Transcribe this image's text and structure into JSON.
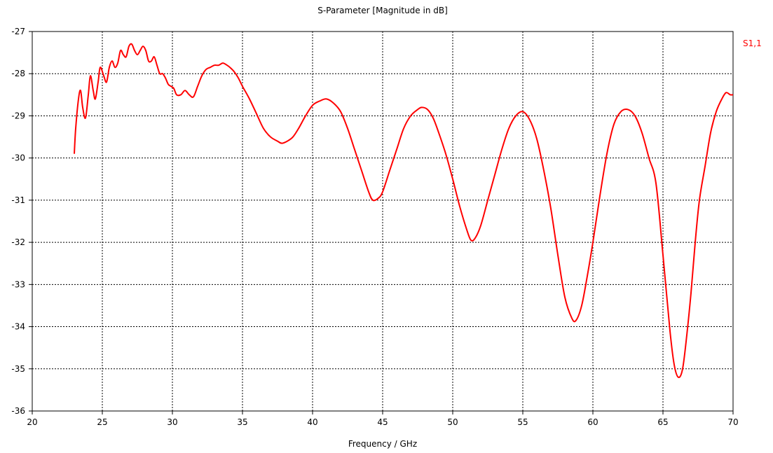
{
  "chart_data": {
    "type": "line",
    "title": "S-Parameter [Magnitude in dB]",
    "xlabel": "Frequency / GHz",
    "ylabel": "",
    "xlim": [
      20,
      70
    ],
    "ylim": [
      -36,
      -27
    ],
    "xticks": [
      20,
      25,
      30,
      35,
      40,
      45,
      50,
      55,
      60,
      65,
      70
    ],
    "yticks": [
      -27,
      -28,
      -29,
      -30,
      -31,
      -32,
      -33,
      -34,
      -35,
      -36
    ],
    "grid": true,
    "legend_position": "top-right",
    "series": [
      {
        "name": "S1,1",
        "color": "#ff0000",
        "x": [
          23.0,
          23.1,
          23.3,
          23.45,
          23.6,
          23.8,
          24.0,
          24.15,
          24.35,
          24.5,
          24.7,
          24.85,
          25.1,
          25.3,
          25.5,
          25.7,
          25.9,
          26.1,
          26.3,
          26.5,
          26.7,
          26.9,
          27.1,
          27.3,
          27.5,
          27.7,
          27.9,
          28.1,
          28.3,
          28.5,
          28.7,
          28.9,
          29.1,
          29.3,
          29.5,
          29.7,
          29.9,
          30.1,
          30.3,
          30.6,
          30.9,
          31.2,
          31.5,
          31.8,
          32.1,
          32.4,
          32.7,
          33.0,
          33.3,
          33.6,
          33.9,
          34.1,
          34.4,
          34.7,
          35.0,
          35.5,
          36.0,
          36.5,
          37.0,
          37.5,
          37.8,
          38.2,
          38.6,
          39.0,
          39.5,
          40.0,
          40.5,
          41.0,
          41.5,
          42.0,
          42.5,
          43.0,
          43.5,
          44.0,
          44.3,
          44.7,
          45.0,
          45.5,
          46.0,
          46.5,
          47.0,
          47.5,
          47.8,
          48.2,
          48.6,
          49.0,
          49.5,
          50.0,
          50.5,
          51.0,
          51.3,
          51.6,
          52.0,
          52.5,
          53.0,
          53.5,
          54.0,
          54.5,
          55.0,
          55.5,
          56.0,
          56.5,
          57.0,
          57.5,
          58.0,
          58.5,
          58.8,
          59.2,
          59.6,
          60.0,
          60.5,
          61.0,
          61.5,
          62.0,
          62.5,
          63.0,
          63.5,
          64.0,
          64.5,
          65.0,
          65.5,
          65.8,
          66.1,
          66.4,
          66.7,
          67.0,
          67.3,
          67.6,
          68.0,
          68.4,
          68.8,
          69.2,
          69.5,
          69.8,
          70.0
        ],
        "values": [
          -29.9,
          -29.3,
          -28.6,
          -28.4,
          -28.8,
          -29.05,
          -28.5,
          -28.05,
          -28.4,
          -28.6,
          -28.2,
          -27.85,
          -28.05,
          -28.2,
          -27.85,
          -27.7,
          -27.85,
          -27.75,
          -27.45,
          -27.55,
          -27.6,
          -27.35,
          -27.3,
          -27.45,
          -27.55,
          -27.45,
          -27.35,
          -27.45,
          -27.7,
          -27.7,
          -27.6,
          -27.8,
          -28.0,
          -28.0,
          -28.1,
          -28.25,
          -28.3,
          -28.35,
          -28.5,
          -28.5,
          -28.4,
          -28.5,
          -28.55,
          -28.3,
          -28.05,
          -27.9,
          -27.85,
          -27.8,
          -27.8,
          -27.75,
          -27.8,
          -27.85,
          -27.95,
          -28.1,
          -28.3,
          -28.6,
          -28.95,
          -29.3,
          -29.5,
          -29.6,
          -29.65,
          -29.6,
          -29.5,
          -29.3,
          -29.0,
          -28.75,
          -28.65,
          -28.6,
          -28.7,
          -28.9,
          -29.3,
          -29.8,
          -30.3,
          -30.8,
          -31.0,
          -30.95,
          -30.8,
          -30.3,
          -29.8,
          -29.3,
          -29.0,
          -28.85,
          -28.8,
          -28.85,
          -29.05,
          -29.4,
          -29.9,
          -30.5,
          -31.15,
          -31.7,
          -31.95,
          -31.9,
          -31.6,
          -31.0,
          -30.4,
          -29.8,
          -29.3,
          -29.0,
          -28.9,
          -29.1,
          -29.55,
          -30.3,
          -31.2,
          -32.3,
          -33.3,
          -33.8,
          -33.85,
          -33.5,
          -32.8,
          -32.0,
          -30.9,
          -29.9,
          -29.2,
          -28.9,
          -28.85,
          -29.0,
          -29.4,
          -30.0,
          -30.6,
          -32.3,
          -34.1,
          -34.9,
          -35.2,
          -35.0,
          -34.2,
          -33.2,
          -32.0,
          -31.0,
          -30.2,
          -29.4,
          -28.9,
          -28.6,
          -28.45,
          -28.5,
          -28.5
        ]
      }
    ]
  }
}
